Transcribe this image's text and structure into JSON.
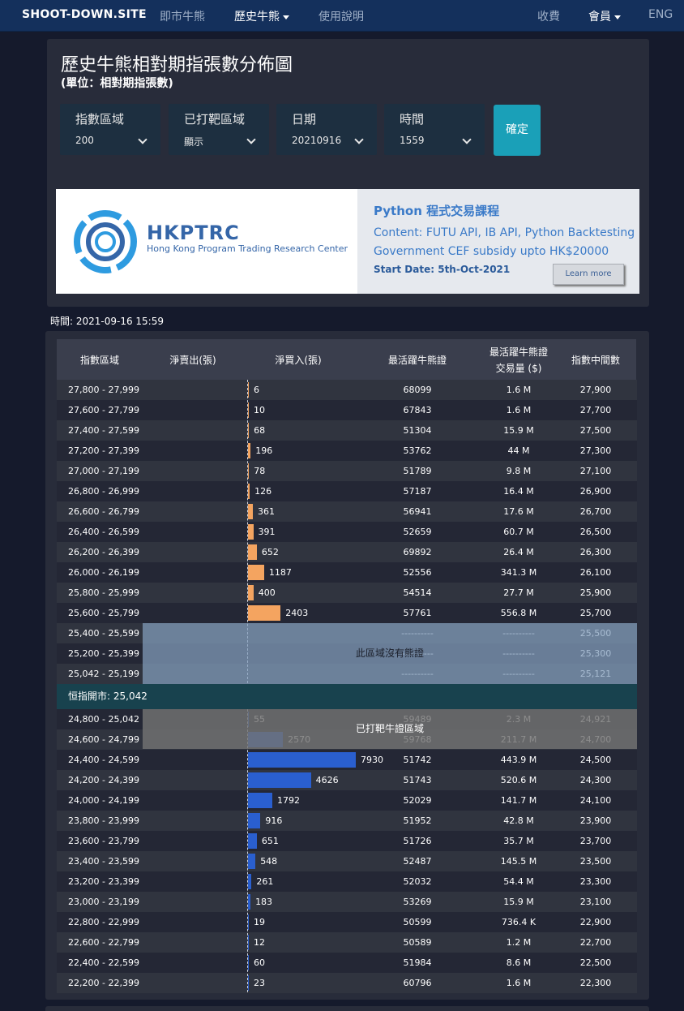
{
  "nav": {
    "brand": "SHOOT-DOWN.SITE",
    "links": [
      "即市牛熊",
      "歷史牛熊",
      "使用說明"
    ],
    "right": [
      "收費",
      "會員",
      "ENG"
    ]
  },
  "panel": {
    "title": "歷史牛熊相對期指張數分佈圖",
    "subtitle": "(單位：相對期指張數)",
    "selectors": [
      {
        "label": "指數區域",
        "value": "200"
      },
      {
        "label": "已打靶區域",
        "value": "顯示"
      },
      {
        "label": "日期",
        "value": "20210916"
      },
      {
        "label": "時間",
        "value": "1559"
      }
    ],
    "confirm_label": "確定"
  },
  "ad": {
    "logo_title": "HKPTRC",
    "logo_subtitle": "Hong Kong Program Trading Research Center",
    "course_title": "Python 程式交易課程",
    "content": "Content: FUTU API, IB API, Python Backtesting",
    "subsidy": "Government CEF subsidy upto HK$20000",
    "start_date": "Start Date: 5th-Oct-2021",
    "learn_more": "Learn more"
  },
  "time_label": "時間: 2021-09-16 15:59",
  "colors": {
    "bear": "#f4a460",
    "bull": "#2a5fcf",
    "accent": "#1aa0b8"
  },
  "table": {
    "headers": {
      "range": "指數區域",
      "net_sell": "淨賣出(張)",
      "net_buy": "淨買入(張)",
      "active_id": "最活躍牛熊證",
      "active_volume_line1": "最活躍牛熊證",
      "active_volume_line2": "交易量 ($)",
      "mid": "指數中間數"
    },
    "bear_rows": [
      {
        "range": "27,800 - 27,999",
        "net": 6,
        "id": "68099",
        "volume": "1.6 M",
        "mid": "27,900"
      },
      {
        "range": "27,600 - 27,799",
        "net": 10,
        "id": "67843",
        "volume": "1.6 M",
        "mid": "27,700"
      },
      {
        "range": "27,400 - 27,599",
        "net": 68,
        "id": "51304",
        "volume": "15.9 M",
        "mid": "27,500"
      },
      {
        "range": "27,200 - 27,399",
        "net": 196,
        "id": "53762",
        "volume": "44 M",
        "mid": "27,300"
      },
      {
        "range": "27,000 - 27,199",
        "net": 78,
        "id": "51789",
        "volume": "9.8 M",
        "mid": "27,100"
      },
      {
        "range": "26,800 - 26,999",
        "net": 126,
        "id": "57187",
        "volume": "16.4 M",
        "mid": "26,900"
      },
      {
        "range": "26,600 - 26,799",
        "net": 361,
        "id": "56941",
        "volume": "17.6 M",
        "mid": "26,700"
      },
      {
        "range": "26,400 - 26,599",
        "net": 391,
        "id": "52659",
        "volume": "60.7 M",
        "mid": "26,500"
      },
      {
        "range": "26,200 - 26,399",
        "net": 652,
        "id": "69892",
        "volume": "26.4 M",
        "mid": "26,300"
      },
      {
        "range": "26,000 - 26,199",
        "net": 1187,
        "id": "52556",
        "volume": "341.3 M",
        "mid": "26,100"
      },
      {
        "range": "25,800 - 25,999",
        "net": 400,
        "id": "54514",
        "volume": "27.7 M",
        "mid": "25,900"
      },
      {
        "range": "25,600 - 25,799",
        "net": 2403,
        "id": "57761",
        "volume": "556.8 M",
        "mid": "25,700"
      }
    ],
    "empty_rows": [
      {
        "range": "25,400 - 25,599",
        "id": "----------",
        "volume": "----------",
        "mid": "25,500"
      },
      {
        "range": "25,200 - 25,399",
        "id": "----------",
        "volume": "----------",
        "mid": "25,300"
      },
      {
        "range": "25,042 - 25,199",
        "id": "----------",
        "volume": "----------",
        "mid": "25,121"
      }
    ],
    "empty_zone_label": "此區域沒有熊證",
    "hsi_label": "恒指開市: 25,042",
    "shot_rows": [
      {
        "range": "24,800 - 25,042",
        "net": 55,
        "id": "59489",
        "volume": "2.3 M",
        "mid": "24,921"
      },
      {
        "range": "24,600 - 24,799",
        "net": 2570,
        "id": "59768",
        "volume": "211.7 M",
        "mid": "24,700"
      }
    ],
    "shot_zone_label": "已打靶牛證區域",
    "bull_rows": [
      {
        "range": "24,400 - 24,599",
        "net": 7930,
        "id": "51742",
        "volume": "443.9 M",
        "mid": "24,500"
      },
      {
        "range": "24,200 - 24,399",
        "net": 4626,
        "id": "51743",
        "volume": "520.6 M",
        "mid": "24,300"
      },
      {
        "range": "24,000 - 24,199",
        "net": 1792,
        "id": "52029",
        "volume": "141.7 M",
        "mid": "24,100"
      },
      {
        "range": "23,800 - 23,999",
        "net": 916,
        "id": "51952",
        "volume": "42.8 M",
        "mid": "23,900"
      },
      {
        "range": "23,600 - 23,799",
        "net": 651,
        "id": "51726",
        "volume": "35.7 M",
        "mid": "23,700"
      },
      {
        "range": "23,400 - 23,599",
        "net": 548,
        "id": "52487",
        "volume": "145.5 M",
        "mid": "23,500"
      },
      {
        "range": "23,200 - 23,399",
        "net": 261,
        "id": "52032",
        "volume": "54.4 M",
        "mid": "23,300"
      },
      {
        "range": "23,000 - 23,199",
        "net": 183,
        "id": "53269",
        "volume": "15.9 M",
        "mid": "23,100"
      },
      {
        "range": "22,800 - 22,999",
        "net": 19,
        "id": "50599",
        "volume": "736.4 K",
        "mid": "22,900"
      },
      {
        "range": "22,600 - 22,799",
        "net": 12,
        "id": "50589",
        "volume": "1.2 M",
        "mid": "22,700"
      },
      {
        "range": "22,400 - 22,599",
        "net": 60,
        "id": "51984",
        "volume": "8.6 M",
        "mid": "22,500"
      },
      {
        "range": "22,200 - 22,399",
        "net": 23,
        "id": "60796",
        "volume": "1.6 M",
        "mid": "22,300"
      }
    ]
  }
}
